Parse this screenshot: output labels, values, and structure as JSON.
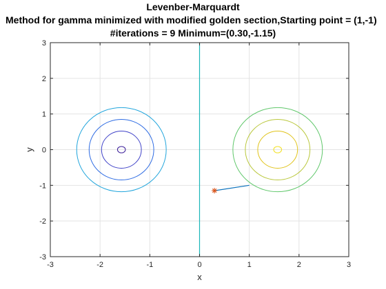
{
  "chart_data": {
    "type": "line",
    "title_lines": [
      "Levenber-Marquardt",
      "Method for gamma minimized with modified golden section,Starting point = (1,-1)",
      "#iterations = 9 Minimum=(0.30,-1.15)"
    ],
    "xlabel": "x",
    "ylabel": "y",
    "xlim": [
      -3,
      3
    ],
    "ylim": [
      -3,
      3
    ],
    "xticks": [
      -3,
      -2,
      -1,
      0,
      1,
      2,
      3
    ],
    "yticks": [
      -3,
      -2,
      -1,
      0,
      1,
      2,
      3
    ],
    "grid": true,
    "contours": [
      {
        "cx": -1.57,
        "cy": 0,
        "rx": 0.08,
        "ry": 0.09,
        "color": "#3a1d99"
      },
      {
        "cx": -1.57,
        "cy": 0,
        "rx": 0.4,
        "ry": 0.52,
        "color": "#3f42c8"
      },
      {
        "cx": -1.57,
        "cy": 0,
        "rx": 0.65,
        "ry": 0.85,
        "color": "#2d6be3"
      },
      {
        "cx": -1.57,
        "cy": 0,
        "rx": 0.9,
        "ry": 1.18,
        "color": "#21a5dc"
      },
      {
        "cx": 1.57,
        "cy": 0,
        "rx": 0.08,
        "ry": 0.09,
        "color": "#f2e020"
      },
      {
        "cx": 1.57,
        "cy": 0,
        "rx": 0.4,
        "ry": 0.52,
        "color": "#e0c319"
      },
      {
        "cx": 1.57,
        "cy": 0,
        "rx": 0.65,
        "ry": 0.85,
        "color": "#b9c73a"
      },
      {
        "cx": 1.57,
        "cy": 0,
        "rx": 0.9,
        "ry": 1.18,
        "color": "#5fc76a"
      }
    ],
    "zero_contour": {
      "x": 0,
      "color": "#1ab5b8"
    },
    "path": {
      "x": [
        1.0,
        0.3
      ],
      "y": [
        -1.0,
        -1.15
      ],
      "color": "#0b72bd"
    },
    "minimum": {
      "x": 0.3,
      "y": -1.15,
      "color": "#d95319",
      "marker": "asterisk"
    }
  }
}
